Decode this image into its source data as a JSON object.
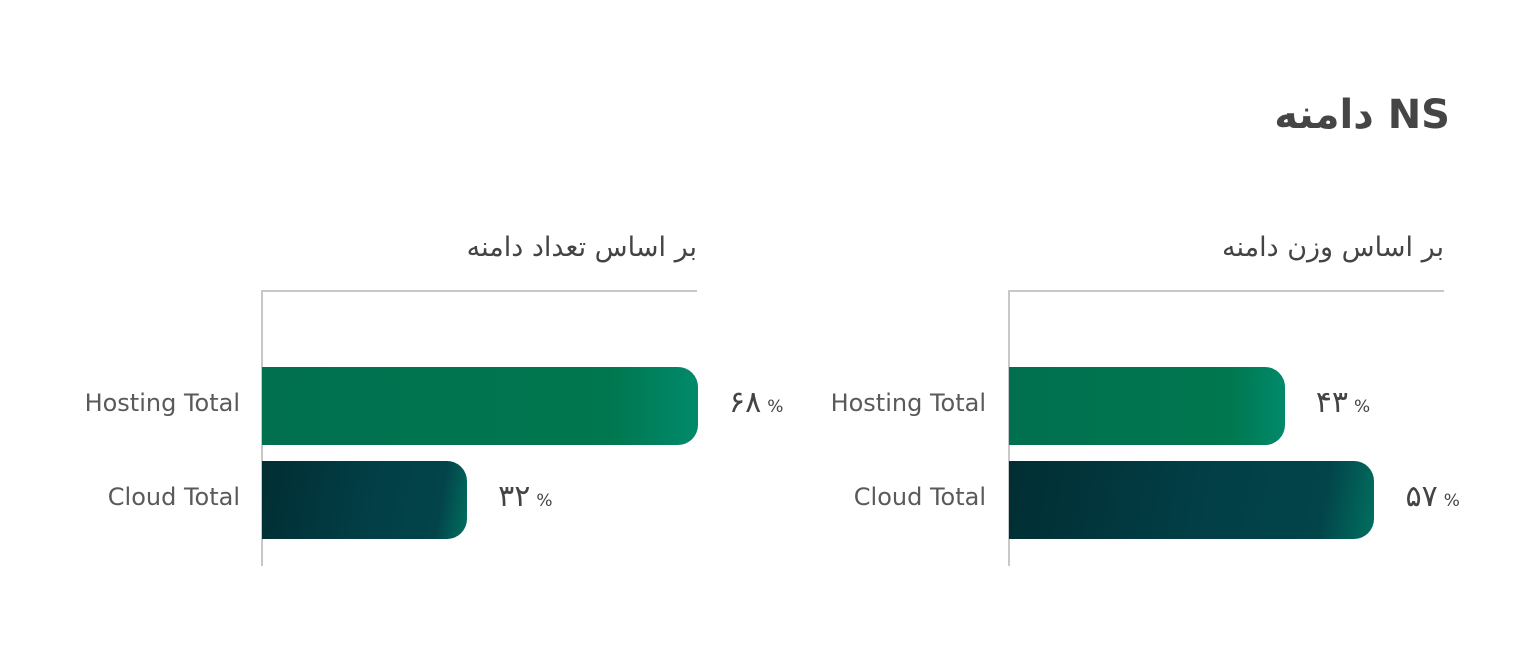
{
  "title": "NS دامنه",
  "chart_data": [
    {
      "type": "bar",
      "orientation": "horizontal",
      "title": "بر اساس تعداد دامنه",
      "categories": [
        "Hosting Total",
        "Cloud Total"
      ],
      "values": [
        68,
        32
      ],
      "value_labels": [
        {
          "num": "۶۸",
          "pct": "%"
        },
        {
          "num": "۳۲",
          "pct": "%"
        }
      ],
      "colors": [
        "#00785a",
        "#023a40"
      ],
      "unit": "%"
    },
    {
      "type": "bar",
      "orientation": "horizontal",
      "title": "بر اساس وزن دامنه",
      "categories": [
        "Hosting Total",
        "Cloud Total"
      ],
      "values": [
        43,
        57
      ],
      "value_labels": [
        {
          "num": "۴۳",
          "pct": "%"
        },
        {
          "num": "۵۷",
          "pct": "%"
        }
      ],
      "colors": [
        "#00785a",
        "#023a40"
      ],
      "unit": "%"
    }
  ]
}
